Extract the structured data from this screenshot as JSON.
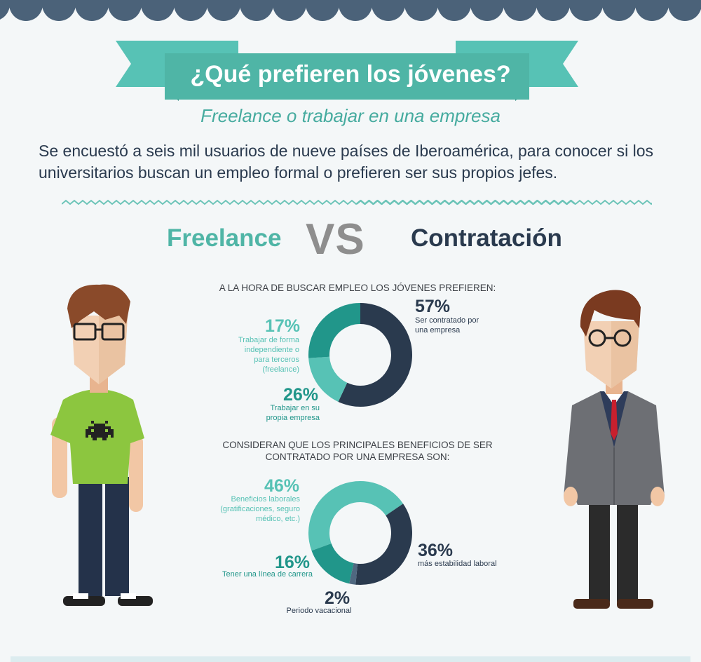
{
  "header": {
    "title": "¿Qué prefieren los jóvenes?",
    "subtitle": "Freelance o trabajar en una empresa",
    "intro": "Se encuestó a seis mil usuarios de nueve países de Iberoamérica, para conocer si los universitarios buscan un empleo formal o prefieren ser sus propios jefes."
  },
  "versus": {
    "left": "Freelance",
    "middle": "VS",
    "right": "Contratación"
  },
  "colors": {
    "navy": "#2a3a4e",
    "teal_light": "#57c2b5",
    "teal_dark": "#21968a",
    "slate": "#4f6880",
    "title_bar": "#4fb5a6",
    "ribbon_tail": "#3fa395",
    "scallop": "#4b6279"
  },
  "survey1": {
    "question": "A LA HORA DE BUSCAR EMPLEO LOS JÓVENES PREFIEREN:",
    "items": [
      {
        "pct": "57%",
        "value": 57,
        "label": "Ser contratado por una empresa"
      },
      {
        "pct": "17%",
        "value": 17,
        "label": "Trabajar de forma independiente o para terceros (freelance)"
      },
      {
        "pct": "26%",
        "value": 26,
        "label": "Trabajar en su propia empresa"
      }
    ]
  },
  "survey2": {
    "question": "CONSIDERAN QUE LOS PRINCIPALES BENEFICIOS DE SER CONTRATADO POR UNA EMPRESA SON:",
    "items": [
      {
        "pct": "46%",
        "value": 46,
        "label": "Beneficios laborales (gratificaciones, seguro médico, etc.)"
      },
      {
        "pct": "36%",
        "value": 36,
        "label": "más estabilidad laboral"
      },
      {
        "pct": "2%",
        "value": 2,
        "label": "Periodo vacacional"
      },
      {
        "pct": "16%",
        "value": 16,
        "label": "Tener una línea de carrera"
      }
    ]
  },
  "characters": {
    "left": "freelancer-character",
    "right": "businessman-character"
  }
}
